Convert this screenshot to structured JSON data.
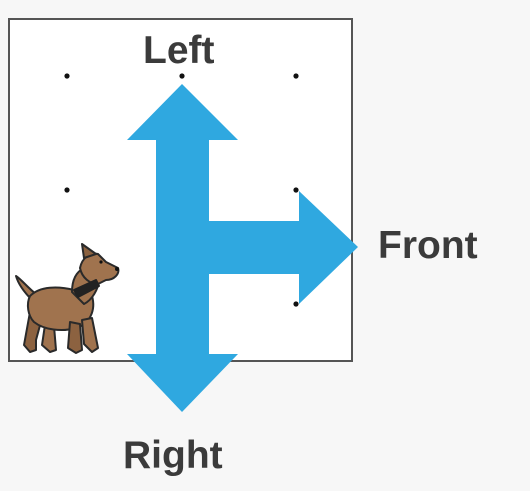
{
  "labels": {
    "left": "Left",
    "front": "Front",
    "right": "Right"
  },
  "colors": {
    "arrow": "#2fa8e0",
    "box_border": "#555555",
    "label_text": "#3b3b3b",
    "dog_body": "#a0734e",
    "dog_collar": "#222222"
  },
  "icons": {
    "dog": "dog-icon",
    "arrows": "three-way-arrow-icon"
  }
}
